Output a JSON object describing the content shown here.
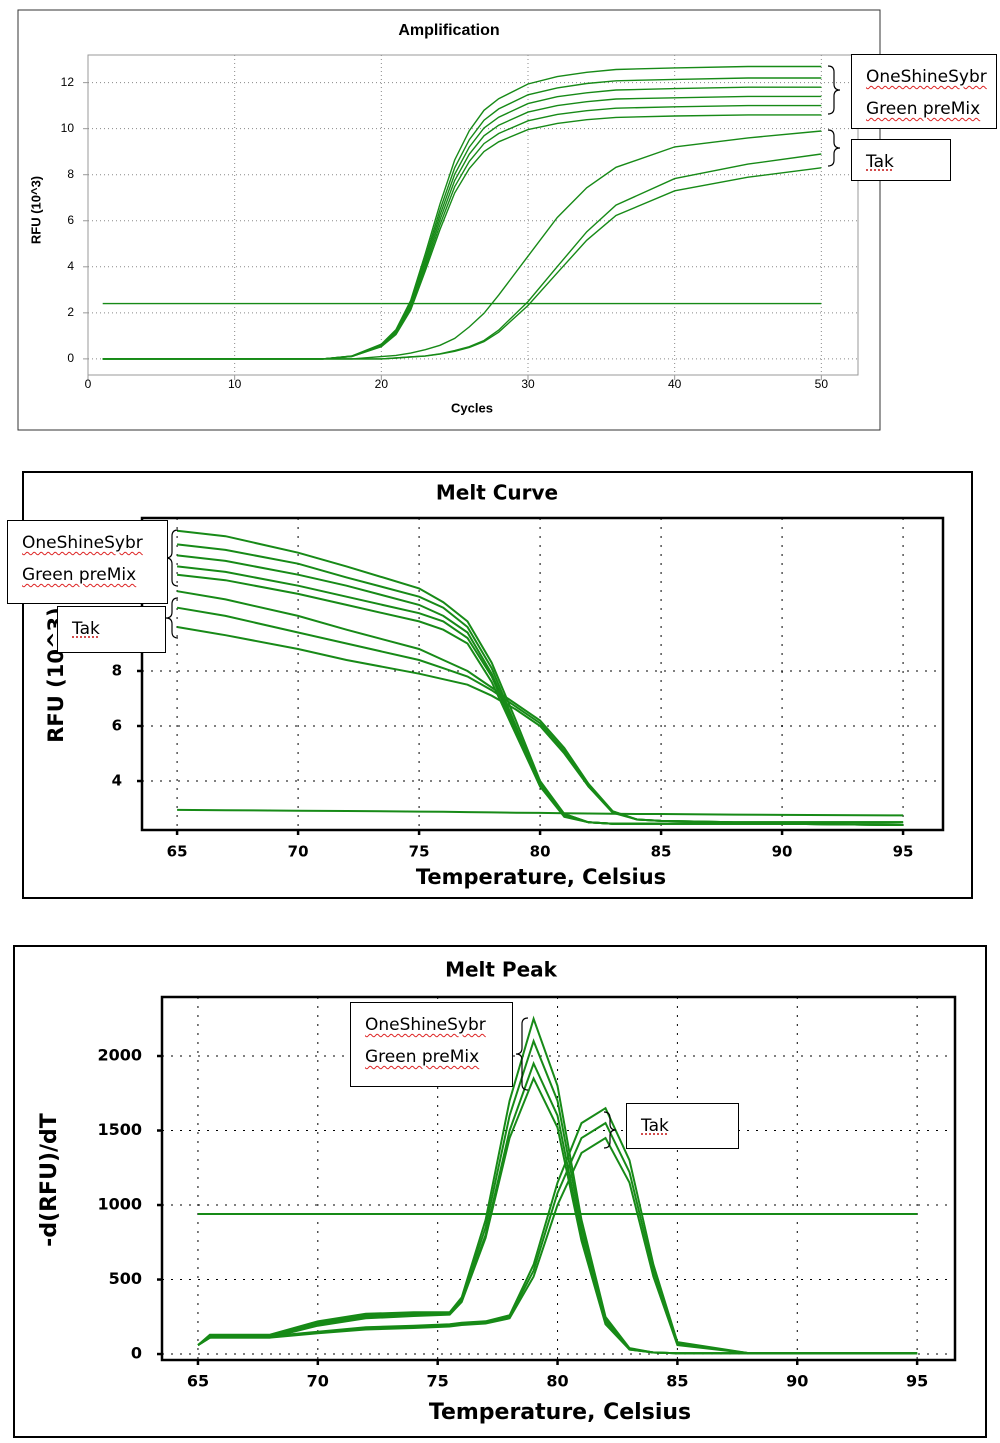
{
  "chart_data": [
    {
      "type": "line",
      "title": "Amplification",
      "x_label": "Cycles",
      "y_label": "RFU (10^3)",
      "x": [
        1,
        10,
        16,
        18,
        20,
        21,
        22,
        23,
        24,
        25,
        26,
        27,
        28,
        30,
        32,
        34,
        36,
        40,
        45,
        50
      ],
      "series": [
        {
          "color": "#178a17",
          "values": [
            0,
            0,
            0,
            0.13,
            0.64,
            1.27,
            2.54,
            4.57,
            6.73,
            8.64,
            9.91,
            10.8,
            11.3,
            11.94,
            12.26,
            12.45,
            12.57,
            12.64,
            12.7,
            12.7
          ]
        },
        {
          "color": "#178a17",
          "values": [
            0,
            0,
            0,
            0.12,
            0.61,
            1.22,
            2.44,
            4.39,
            6.47,
            8.3,
            9.52,
            10.37,
            10.86,
            11.47,
            11.77,
            11.96,
            12.08,
            12.14,
            12.2,
            12.2
          ]
        },
        {
          "color": "#178a17",
          "values": [
            0,
            0,
            0,
            0.12,
            0.59,
            1.18,
            2.36,
            4.25,
            6.25,
            8.02,
            9.2,
            10.03,
            10.5,
            11.09,
            11.39,
            11.56,
            11.68,
            11.74,
            11.8,
            11.8
          ]
        },
        {
          "color": "#178a17",
          "values": [
            0,
            0,
            0,
            0.11,
            0.57,
            1.14,
            2.28,
            4.1,
            6.04,
            7.75,
            8.89,
            9.69,
            10.15,
            10.72,
            11.0,
            11.17,
            11.29,
            11.34,
            11.4,
            11.4
          ]
        },
        {
          "color": "#178a17",
          "values": [
            0,
            0,
            0,
            0.11,
            0.55,
            1.1,
            2.2,
            3.96,
            5.83,
            7.48,
            8.58,
            9.35,
            9.79,
            10.34,
            10.62,
            10.78,
            10.89,
            10.95,
            11.0,
            11.0
          ]
        },
        {
          "color": "#178a17",
          "values": [
            0,
            0,
            0,
            0.11,
            0.53,
            1.06,
            2.12,
            3.82,
            5.62,
            7.21,
            8.27,
            9.01,
            9.43,
            9.96,
            10.23,
            10.39,
            10.49,
            10.55,
            10.6,
            10.6
          ]
        },
        {
          "color": "#178a17",
          "values": [
            0,
            0,
            0,
            0,
            0.1,
            0.15,
            0.25,
            0.4,
            0.59,
            0.89,
            1.39,
            1.98,
            2.77,
            4.46,
            6.14,
            7.43,
            8.32,
            9.21,
            9.6,
            9.9
          ]
        },
        {
          "color": "#178a17",
          "values": [
            0,
            0,
            0,
            0,
            0,
            0.04,
            0.09,
            0.13,
            0.22,
            0.36,
            0.53,
            0.8,
            1.25,
            2.49,
            4.01,
            5.52,
            6.68,
            7.83,
            8.46,
            8.9
          ]
        },
        {
          "color": "#178a17",
          "values": [
            0,
            0,
            0,
            0,
            0,
            0.04,
            0.08,
            0.12,
            0.21,
            0.33,
            0.5,
            0.75,
            1.16,
            2.32,
            3.74,
            5.15,
            6.23,
            7.3,
            7.89,
            8.3
          ]
        },
        {
          "color": "#178a17",
          "values": [
            2.4,
            2.4,
            2.4,
            2.4,
            2.4,
            2.4,
            2.4,
            2.4,
            2.4,
            2.4,
            2.4,
            2.4,
            2.4,
            2.4,
            2.4,
            2.4,
            2.4,
            2.4,
            2.4,
            2.4
          ]
        }
      ],
      "xlim": [
        0,
        52.5
      ],
      "ylim": [
        -0.7,
        13.2
      ],
      "xticks": [
        0,
        10,
        20,
        30,
        40,
        50
      ],
      "yticks": [
        0,
        2,
        4,
        6,
        8,
        10,
        12
      ],
      "grid": true,
      "annotations": [
        {
          "lines": [
            "OneShineSybr",
            "Green preMix"
          ]
        },
        {
          "lines": [
            "Tak"
          ]
        }
      ]
    },
    {
      "type": "line",
      "title": "Melt Curve",
      "x_label": "Temperature, Celsius",
      "y_label": "RFU (10^3)",
      "x": [
        65,
        67,
        70,
        72,
        75,
        76,
        77,
        78,
        79,
        80,
        81,
        82,
        83,
        84,
        85,
        88,
        90,
        95
      ],
      "series": [
        {
          "color": "#178a17",
          "values": [
            13.1,
            12.9,
            12.3,
            11.8,
            11.0,
            10.5,
            9.8,
            8.3,
            6.2,
            4.0,
            2.8,
            2.5,
            2.45,
            2.45,
            2.45,
            2.45,
            2.45,
            2.4
          ]
        },
        {
          "color": "#178a17",
          "values": [
            12.6,
            12.4,
            11.9,
            11.4,
            10.7,
            10.3,
            9.6,
            8.1,
            6.0,
            3.9,
            2.8,
            2.5,
            2.45,
            2.45,
            2.45,
            2.45,
            2.45,
            2.4
          ]
        },
        {
          "color": "#178a17",
          "values": [
            12.2,
            12.0,
            11.5,
            11.1,
            10.4,
            10.0,
            9.4,
            7.9,
            5.9,
            3.9,
            2.75,
            2.5,
            2.45,
            2.45,
            2.45,
            2.45,
            2.45,
            2.4
          ]
        },
        {
          "color": "#178a17",
          "values": [
            11.8,
            11.6,
            11.1,
            10.7,
            10.1,
            9.8,
            9.2,
            7.8,
            5.8,
            3.8,
            2.75,
            2.5,
            2.45,
            2.45,
            2.45,
            2.45,
            2.45,
            2.4
          ]
        },
        {
          "color": "#178a17",
          "values": [
            11.5,
            11.3,
            10.8,
            10.4,
            9.8,
            9.5,
            9.0,
            7.6,
            5.7,
            3.8,
            2.7,
            2.5,
            2.45,
            2.45,
            2.45,
            2.45,
            2.45,
            2.4
          ]
        },
        {
          "color": "#178a17",
          "values": [
            10.9,
            10.6,
            10.0,
            9.5,
            8.8,
            8.4,
            8.0,
            7.4,
            6.8,
            6.2,
            5.2,
            3.9,
            2.9,
            2.6,
            2.55,
            2.5,
            2.5,
            2.5
          ]
        },
        {
          "color": "#178a17",
          "values": [
            10.3,
            10.0,
            9.4,
            9.0,
            8.4,
            8.1,
            7.8,
            7.3,
            6.7,
            6.1,
            5.1,
            3.8,
            2.9,
            2.6,
            2.55,
            2.5,
            2.5,
            2.5
          ]
        },
        {
          "color": "#178a17",
          "values": [
            9.6,
            9.3,
            8.8,
            8.4,
            7.9,
            7.7,
            7.5,
            7.1,
            6.6,
            6.0,
            5.0,
            3.8,
            2.85,
            2.6,
            2.55,
            2.5,
            2.5,
            2.5
          ]
        },
        {
          "color": "#178a17",
          "values": [
            2.95,
            2.94,
            2.92,
            2.91,
            2.89,
            2.88,
            2.87,
            2.86,
            2.85,
            2.84,
            2.83,
            2.82,
            2.81,
            2.8,
            2.8,
            2.78,
            2.77,
            2.75
          ]
        }
      ],
      "xlim": [
        63.55,
        96.65
      ],
      "ylim": [
        2.22,
        13.56
      ],
      "xticks": [
        65,
        70,
        75,
        80,
        85,
        90,
        95
      ],
      "yticks": [
        4,
        6,
        8
      ],
      "grid": true,
      "annotations": [
        {
          "lines": [
            "OneShineSybr",
            "Green preMix"
          ]
        },
        {
          "lines": [
            "Tak"
          ]
        }
      ]
    },
    {
      "type": "line",
      "title": "Melt Peak",
      "x_label": "Temperature, Celsius",
      "y_label": "-d(RFU)/dT",
      "x": [
        65,
        65.5,
        66,
        68,
        70,
        72,
        74,
        75.5,
        76,
        77,
        78,
        79,
        80,
        81,
        82,
        83,
        84,
        85,
        88,
        95
      ],
      "series": [
        {
          "color": "#178a17",
          "values": [
            60,
            130,
            130,
            130,
            220,
            270,
            280,
            280,
            380,
            900,
            1700,
            2250,
            1800,
            900,
            250,
            40,
            10,
            5,
            5,
            5
          ]
        },
        {
          "color": "#178a17",
          "values": [
            60,
            120,
            120,
            120,
            210,
            260,
            270,
            275,
            370,
            850,
            1600,
            2100,
            1700,
            850,
            230,
            35,
            10,
            5,
            5,
            5
          ]
        },
        {
          "color": "#178a17",
          "values": [
            60,
            110,
            115,
            115,
            200,
            250,
            260,
            270,
            360,
            800,
            1500,
            1950,
            1600,
            800,
            220,
            30,
            10,
            5,
            5,
            5
          ]
        },
        {
          "color": "#178a17",
          "values": [
            60,
            110,
            110,
            110,
            190,
            240,
            255,
            265,
            350,
            780,
            1450,
            1850,
            1520,
            760,
            200,
            30,
            10,
            5,
            5,
            5
          ]
        },
        {
          "color": "#178a17",
          "values": [
            60,
            120,
            120,
            120,
            150,
            180,
            190,
            200,
            210,
            220,
            260,
            600,
            1150,
            1550,
            1650,
            1300,
            600,
            80,
            5,
            5
          ]
        },
        {
          "color": "#178a17",
          "values": [
            60,
            115,
            115,
            115,
            145,
            170,
            180,
            190,
            200,
            210,
            250,
            560,
            1080,
            1450,
            1550,
            1220,
            560,
            70,
            5,
            5
          ]
        },
        {
          "color": "#178a17",
          "values": [
            60,
            110,
            110,
            110,
            140,
            165,
            175,
            185,
            195,
            205,
            240,
            520,
            1000,
            1350,
            1450,
            1150,
            520,
            60,
            5,
            5
          ]
        },
        {
          "color": "#178a17",
          "values": [
            940,
            940,
            940,
            940,
            940,
            940,
            940,
            940,
            940,
            940,
            940,
            940,
            940,
            940,
            940,
            940,
            940,
            940,
            940,
            940
          ]
        }
      ],
      "xlim": [
        63.5,
        96.58
      ],
      "ylim": [
        -40,
        2396
      ],
      "xticks": [
        65,
        70,
        75,
        80,
        85,
        90,
        95
      ],
      "yticks": [
        0,
        500,
        1000,
        1500,
        2000
      ],
      "grid": true,
      "annotations": [
        {
          "lines": [
            "OneShineSybr",
            "Green preMix"
          ]
        },
        {
          "lines": [
            "Tak"
          ]
        }
      ]
    }
  ]
}
